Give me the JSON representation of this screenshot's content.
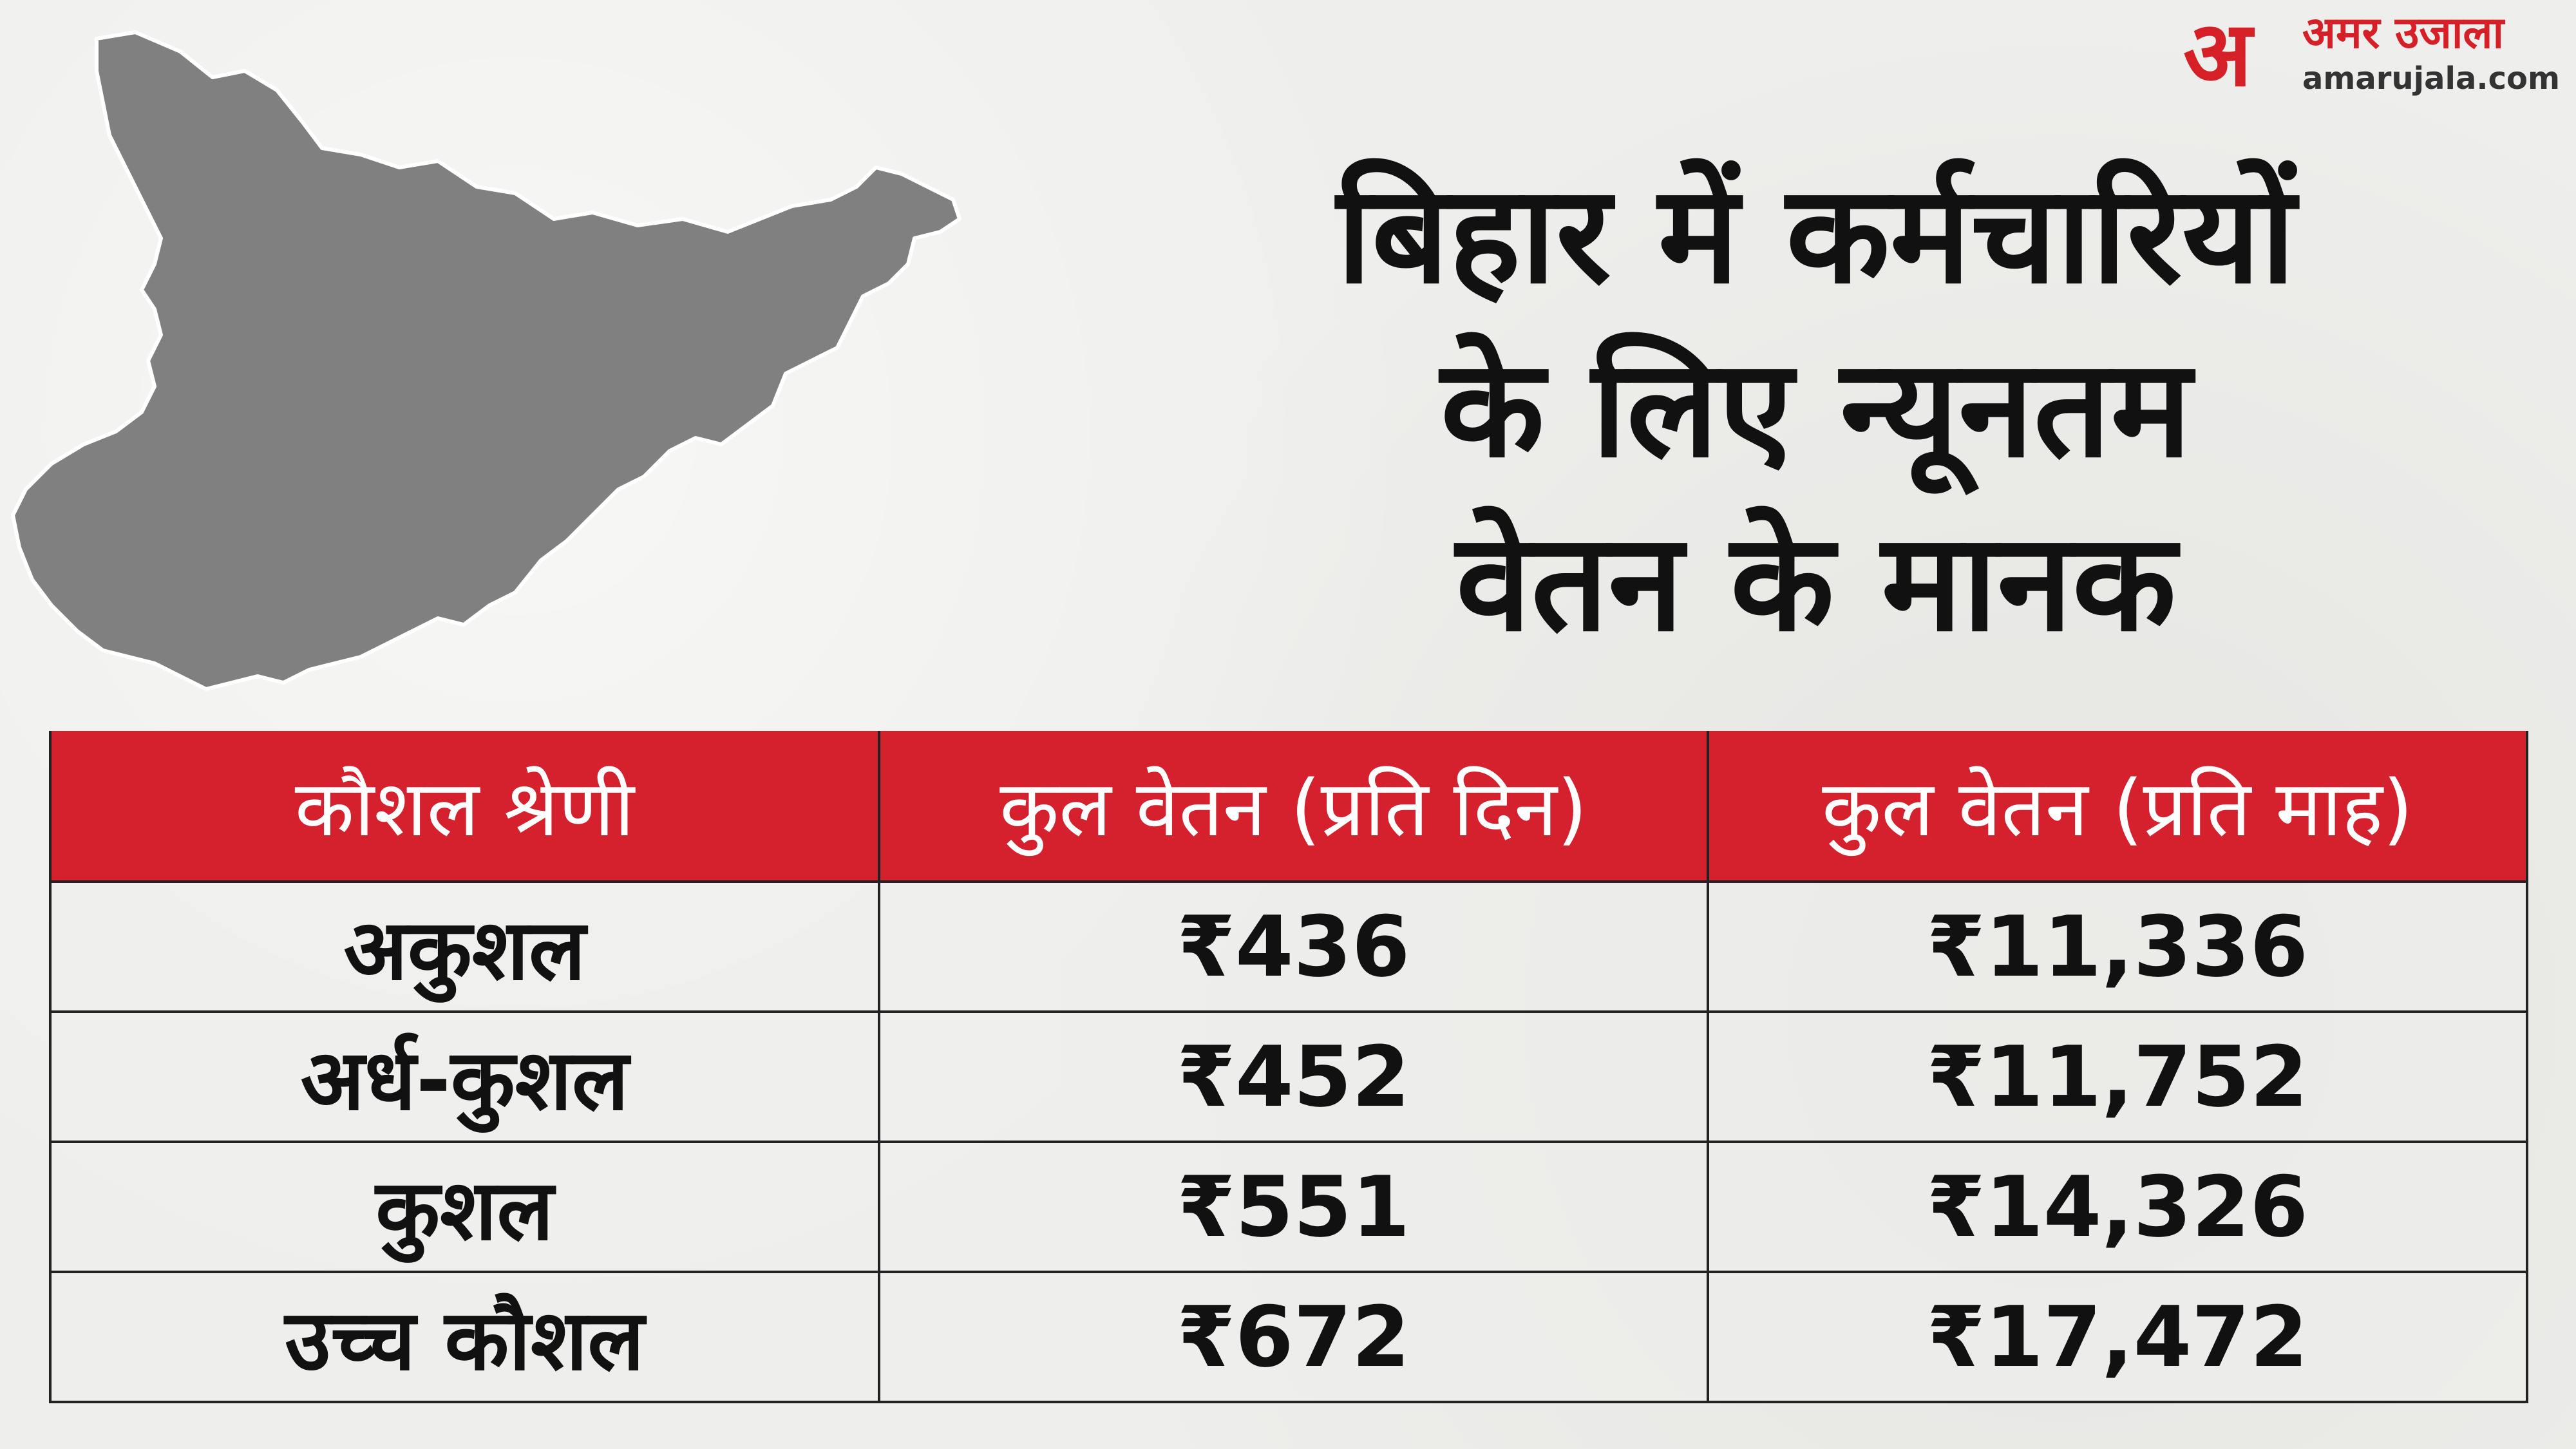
{
  "logo": {
    "mark": "अ",
    "name": "अमर उजाला",
    "url": "amarujala.com",
    "color": "#d62027"
  },
  "title_lines": [
    "बिहार में कर्मचारियों",
    "के लिए न्यूनतम",
    "वेतन के मानक"
  ],
  "map": {
    "icon": "bihar-map",
    "fill": "#808080"
  },
  "table": {
    "header_color": "#d5212e",
    "headers": [
      "कौशल श्रेणी",
      "कुल वेतन (प्रति दिन)",
      "कुल वेतन (प्रति माह)"
    ],
    "rows": [
      [
        "अकुशल",
        "₹436",
        "₹11,336"
      ],
      [
        "अर्ध-कुशल",
        "₹452",
        "₹11,752"
      ],
      [
        "कुशल",
        "₹551",
        "₹14,326"
      ],
      [
        "उच्च कौशल",
        "₹672",
        "₹17,472"
      ]
    ]
  }
}
